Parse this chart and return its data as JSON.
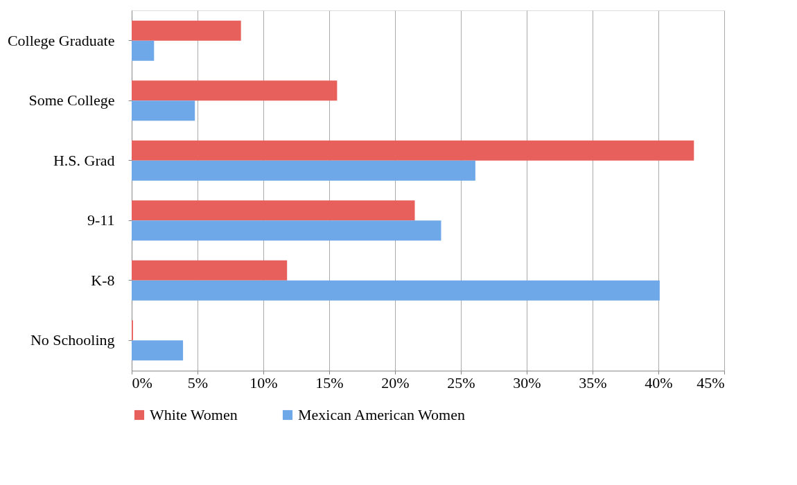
{
  "chart_data": {
    "type": "bar",
    "orientation": "horizontal",
    "categories": [
      "College Graduate",
      "Some College",
      "H.S. Grad",
      "9-11",
      "K-8",
      "No Schooling"
    ],
    "series": [
      {
        "name": "White Women",
        "color": "#e8605c",
        "values": [
          8.3,
          15.6,
          42.7,
          21.5,
          11.8,
          0.1
        ]
      },
      {
        "name": "Mexican American Women",
        "color": "#6fa8e8",
        "values": [
          1.7,
          4.8,
          26.1,
          23.5,
          40.1,
          3.9
        ]
      }
    ],
    "xlim": [
      0,
      45
    ],
    "xticks": [
      {
        "value": 0,
        "label": "0%"
      },
      {
        "value": 5,
        "label": "5%"
      },
      {
        "value": 10,
        "label": "10%"
      },
      {
        "value": 15,
        "label": "15%"
      },
      {
        "value": 20,
        "label": "20%"
      },
      {
        "value": 25,
        "label": "25%"
      },
      {
        "value": 30,
        "label": "30%"
      },
      {
        "value": 35,
        "label": "35%"
      },
      {
        "value": 40,
        "label": "40%"
      },
      {
        "value": 45,
        "label": "45%"
      }
    ],
    "grid": "x",
    "legend": "bottom"
  }
}
